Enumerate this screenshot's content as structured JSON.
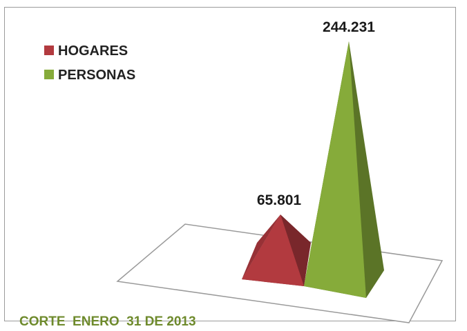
{
  "chart_data": {
    "type": "bar",
    "shape": "3d-pyramid",
    "categories": [
      "HOGARES",
      "PERSONAS"
    ],
    "values": [
      65801,
      244231
    ],
    "value_labels": [
      "65.801",
      "244.231"
    ],
    "colors": [
      "#b23a3f",
      "#86ab3a"
    ],
    "legend": {
      "placement": "top-left",
      "entries": [
        "HOGARES",
        "PERSONAS"
      ]
    },
    "grid": false,
    "footer": "CORTE  ENERO  31 DE 2013"
  }
}
